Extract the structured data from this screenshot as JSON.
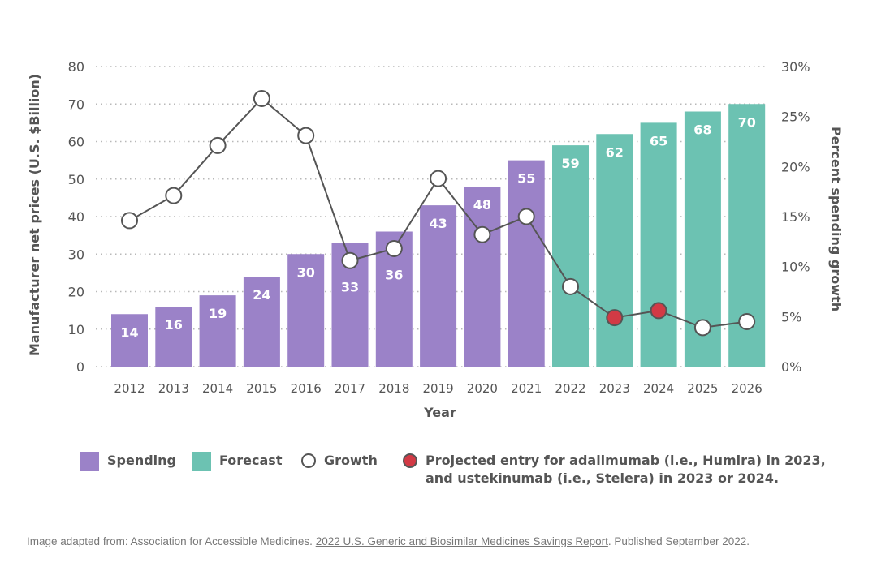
{
  "chart_data": {
    "type": "bar",
    "title": "",
    "xlabel": "Year",
    "ylabel": "Manufacturer net prices (U.S. $Billion)",
    "y2label": "Percent spending growth",
    "ylim": [
      0,
      80
    ],
    "y2lim": [
      0,
      30
    ],
    "yticks": [
      "0",
      "10",
      "20",
      "30",
      "40",
      "50",
      "60",
      "70",
      "80"
    ],
    "y2ticks": [
      "0%",
      "5%",
      "10%",
      "15%",
      "20%",
      "25%",
      "30%"
    ],
    "grid": true,
    "categories": [
      "2012",
      "2013",
      "2014",
      "2015",
      "2016",
      "2017",
      "2018",
      "2019",
      "2020",
      "2021",
      "2022",
      "2023",
      "2024",
      "2025",
      "2026"
    ],
    "series": [
      {
        "name": "Spending",
        "type": "bar",
        "axis": "left",
        "color": "#9b82c8",
        "values": [
          14,
          16,
          19,
          24,
          30,
          33,
          36,
          43,
          48,
          55,
          null,
          null,
          null,
          null,
          null
        ]
      },
      {
        "name": "Forecast",
        "type": "bar",
        "axis": "left",
        "color": "#6cc2b2",
        "values": [
          null,
          null,
          null,
          null,
          null,
          null,
          null,
          null,
          null,
          null,
          59,
          62,
          65,
          68,
          70
        ]
      },
      {
        "name": "Growth",
        "type": "line",
        "axis": "right",
        "unit": "%",
        "values": [
          14.6,
          17.1,
          22.1,
          26.8,
          23.1,
          10.6,
          11.8,
          18.8,
          13.2,
          15.0,
          8.0,
          4.9,
          5.6,
          3.9,
          4.5
        ],
        "highlight_categories": [
          "2023",
          "2024"
        ],
        "highlight_color": "#d23a45"
      }
    ],
    "legend_position": "bottom",
    "legend": [
      {
        "label": "Spending",
        "kind": "square",
        "color": "#9b82c8"
      },
      {
        "label": "Forecast",
        "kind": "square",
        "color": "#6cc2b2"
      },
      {
        "label": "Growth",
        "kind": "open-circle",
        "color": "#ffffff"
      },
      {
        "label": "Projected entry for adalimumab (i.e., Humira) in 2023,",
        "label2": "and ustekinumab (i.e., Stelera) in 2023 or 2024.",
        "kind": "filled-circle",
        "color": "#d23a45"
      }
    ]
  },
  "source": {
    "prefix": "Image adapted from: Association for Accessible Medicines. ",
    "link_text": "2022 U.S. Generic and Biosimilar Medicines Savings Report",
    "suffix": ". Published September 2022."
  }
}
